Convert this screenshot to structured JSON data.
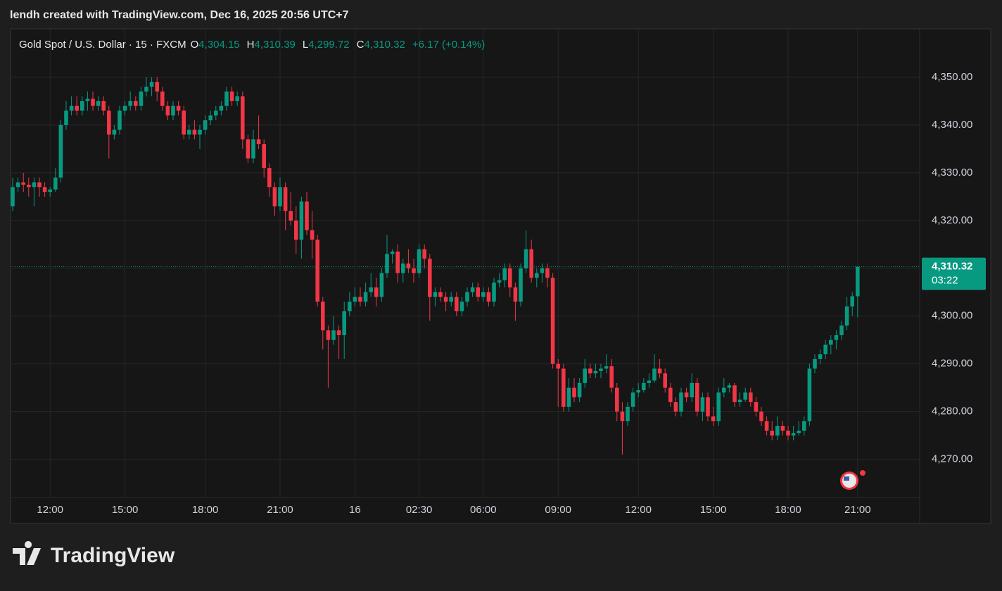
{
  "credit": "lendh created with TradingView.com, Dec 16, 2025 20:56 UTC+7",
  "brand": "TradingView",
  "legend": {
    "symbol": "Gold Spot / U.S. Dollar · 15 · FXCM",
    "items": [
      {
        "key": "O",
        "value": "4,304.15"
      },
      {
        "key": "H",
        "value": "4,310.39"
      },
      {
        "key": "L",
        "value": "4,299.72"
      },
      {
        "key": "C",
        "value": "4,310.32"
      }
    ],
    "change": "+6.17 (+0.14%)"
  },
  "chart_data": {
    "type": "candlestick",
    "up_color": "#089981",
    "down_color": "#f23645",
    "ylim": [
      4262,
      4360
    ],
    "yticks": [
      {
        "value": 4270,
        "label": "4,270.00"
      },
      {
        "value": 4280,
        "label": "4,280.00"
      },
      {
        "value": 4290,
        "label": "4,290.00"
      },
      {
        "value": 4300,
        "label": "4,300.00"
      },
      {
        "value": 4310,
        "label": "4,310.00"
      },
      {
        "value": 4320,
        "label": "4,320.00"
      },
      {
        "value": 4330,
        "label": "4,330.00"
      },
      {
        "value": 4340,
        "label": "4,340.00"
      },
      {
        "value": 4350,
        "label": "4,350.00"
      }
    ],
    "grid": true,
    "last_price": {
      "value": 4310.32,
      "label": "4,310.32",
      "countdown": "03:22"
    },
    "categories": [
      null,
      null,
      null,
      null,
      null,
      null,
      null,
      "12:00",
      null,
      null,
      null,
      null,
      null,
      null,
      null,
      null,
      null,
      null,
      null,
      null,
      null,
      "15:00",
      null,
      null,
      null,
      null,
      null,
      null,
      null,
      null,
      null,
      null,
      null,
      null,
      null,
      null,
      "18:00",
      null,
      null,
      null,
      null,
      null,
      null,
      null,
      null,
      null,
      null,
      null,
      null,
      null,
      "21:00",
      null,
      null,
      null,
      null,
      null,
      null,
      null,
      null,
      null,
      null,
      null,
      null,
      null,
      "16",
      null,
      null,
      null,
      null,
      null,
      null,
      null,
      null,
      null,
      null,
      null,
      "02:30",
      null,
      null,
      null,
      null,
      null,
      null,
      null,
      null,
      null,
      null,
      null,
      "06:00",
      null,
      null,
      null,
      null,
      null,
      null,
      null,
      null,
      null,
      null,
      null,
      null,
      null,
      "09:00",
      null,
      null,
      null,
      null,
      null,
      null,
      null,
      null,
      null,
      null,
      null,
      null,
      null,
      null,
      "12:00",
      null,
      null,
      null,
      null,
      null,
      null,
      null,
      null,
      null,
      null,
      null,
      null,
      null,
      "15:00",
      null,
      null,
      null,
      null,
      null,
      null,
      null,
      null,
      null,
      null,
      null,
      null,
      null,
      "18:00",
      null,
      null,
      null,
      null,
      null,
      null,
      null,
      null,
      null,
      null,
      null,
      null,
      "21:00"
    ],
    "ohlc": [
      [
        4323,
        4329,
        4322,
        4327
      ],
      [
        4327,
        4329,
        4326,
        4328
      ],
      [
        4328,
        4330,
        4326,
        4327.5
      ],
      [
        4327.5,
        4329,
        4325,
        4327
      ],
      [
        4327,
        4329,
        4323,
        4328
      ],
      [
        4328,
        4329,
        4325,
        4327
      ],
      [
        4327,
        4328,
        4325,
        4326
      ],
      [
        4326,
        4327,
        4325,
        4326.5
      ],
      [
        4326.5,
        4331,
        4326,
        4329
      ],
      [
        4329,
        4341,
        4328,
        4340
      ],
      [
        4340,
        4345,
        4339,
        4343
      ],
      [
        4343,
        4346,
        4342,
        4344
      ],
      [
        4344,
        4346,
        4342,
        4343
      ],
      [
        4343,
        4346,
        4342,
        4345
      ],
      [
        4345,
        4347,
        4343,
        4345.5
      ],
      [
        4345.5,
        4347,
        4343,
        4344
      ],
      [
        4344,
        4346,
        4343,
        4345
      ],
      [
        4345,
        4346,
        4342,
        4343
      ],
      [
        4343,
        4344,
        4333,
        4338
      ],
      [
        4338,
        4340,
        4337,
        4339
      ],
      [
        4339,
        4344,
        4338,
        4343
      ],
      [
        4343,
        4345,
        4342,
        4344
      ],
      [
        4344,
        4347,
        4343,
        4345
      ],
      [
        4345,
        4346,
        4343,
        4344
      ],
      [
        4344,
        4348,
        4343,
        4347
      ],
      [
        4347,
        4350,
        4346,
        4348
      ],
      [
        4348,
        4350,
        4346,
        4349
      ],
      [
        4349,
        4350,
        4345,
        4347
      ],
      [
        4347,
        4348,
        4343,
        4344
      ],
      [
        4344,
        4345,
        4341,
        4342
      ],
      [
        4342,
        4345,
        4341,
        4344
      ],
      [
        4344,
        4345,
        4342,
        4343
      ],
      [
        4343,
        4344,
        4337,
        4338
      ],
      [
        4338,
        4340,
        4337,
        4339
      ],
      [
        4339,
        4341,
        4337,
        4338
      ],
      [
        4338,
        4340,
        4335,
        4339
      ],
      [
        4339,
        4342,
        4338,
        4341
      ],
      [
        4341,
        4343,
        4340,
        4342
      ],
      [
        4342,
        4344,
        4341,
        4343
      ],
      [
        4343,
        4345,
        4342,
        4344
      ],
      [
        4344,
        4348,
        4343,
        4347
      ],
      [
        4347,
        4348,
        4344,
        4345
      ],
      [
        4345,
        4347,
        4344,
        4346
      ],
      [
        4346,
        4347,
        4335,
        4337
      ],
      [
        4337,
        4338,
        4332,
        4333
      ],
      [
        4333,
        4339,
        4332,
        4337
      ],
      [
        4337,
        4342,
        4335,
        4336
      ],
      [
        4336,
        4337,
        4329,
        4331
      ],
      [
        4331,
        4332,
        4325,
        4327
      ],
      [
        4327,
        4328,
        4321,
        4323
      ],
      [
        4323,
        4329,
        4322,
        4327
      ],
      [
        4327,
        4328,
        4318,
        4322
      ],
      [
        4322,
        4326,
        4319,
        4320
      ],
      [
        4320,
        4323,
        4313,
        4316
      ],
      [
        4316,
        4325,
        4312,
        4324
      ],
      [
        4324,
        4326,
        4317,
        4318
      ],
      [
        4318,
        4322,
        4312,
        4316
      ],
      [
        4316,
        4317,
        4302,
        4303
      ],
      [
        4303,
        4304,
        4293,
        4297
      ],
      [
        4297,
        4298,
        4285,
        4295
      ],
      [
        4295,
        4300,
        4294,
        4297
      ],
      [
        4297,
        4298,
        4291,
        4296
      ],
      [
        4296,
        4303,
        4291,
        4301
      ],
      [
        4301,
        4305,
        4300,
        4303
      ],
      [
        4303,
        4306,
        4302,
        4304
      ],
      [
        4304,
        4306,
        4302,
        4303
      ],
      [
        4303,
        4307,
        4302,
        4305
      ],
      [
        4305,
        4309,
        4304,
        4306
      ],
      [
        4306,
        4308,
        4302,
        4304
      ],
      [
        4304,
        4310,
        4303,
        4309
      ],
      [
        4309,
        4317,
        4308,
        4313
      ],
      [
        4313,
        4314,
        4311,
        4313.5
      ],
      [
        4313.5,
        4315,
        4307,
        4309
      ],
      [
        4309,
        4312,
        4307,
        4311
      ],
      [
        4311,
        4314,
        4309,
        4310
      ],
      [
        4310,
        4312,
        4307,
        4309
      ],
      [
        4309,
        4315,
        4308,
        4314
      ],
      [
        4314,
        4315,
        4310,
        4312
      ],
      [
        4312,
        4313,
        4299,
        4304
      ],
      [
        4304,
        4306,
        4302,
        4305
      ],
      [
        4305,
        4306,
        4303,
        4304
      ],
      [
        4304,
        4305,
        4301,
        4303
      ],
      [
        4303,
        4305,
        4302,
        4304
      ],
      [
        4304,
        4305,
        4300,
        4301
      ],
      [
        4301,
        4304,
        4300,
        4303
      ],
      [
        4303,
        4306,
        4302,
        4305
      ],
      [
        4305,
        4307,
        4304,
        4306
      ],
      [
        4306,
        4307,
        4303,
        4304
      ],
      [
        4304,
        4306,
        4303,
        4305
      ],
      [
        4305,
        4306,
        4302,
        4303
      ],
      [
        4303,
        4308,
        4302,
        4307
      ],
      [
        4307,
        4309,
        4306,
        4307.5
      ],
      [
        4307.5,
        4311,
        4306,
        4310
      ],
      [
        4310,
        4311,
        4304,
        4306
      ],
      [
        4306,
        4307,
        4299,
        4303
      ],
      [
        4303,
        4311,
        4302,
        4310
      ],
      [
        4310,
        4318,
        4309,
        4314
      ],
      [
        4314,
        4316,
        4307,
        4308
      ],
      [
        4308,
        4310,
        4306,
        4309
      ],
      [
        4309,
        4311,
        4307,
        4310
      ],
      [
        4310,
        4311,
        4306,
        4308
      ],
      [
        4308,
        4309,
        4289,
        4290
      ],
      [
        4290,
        4291,
        4281,
        4289
      ],
      [
        4289,
        4290,
        4280,
        4281
      ],
      [
        4281,
        4287,
        4280,
        4285
      ],
      [
        4285,
        4287,
        4282,
        4283
      ],
      [
        4283,
        4287,
        4282,
        4286
      ],
      [
        4286,
        4291,
        4285,
        4289
      ],
      [
        4289,
        4290,
        4287,
        4288
      ],
      [
        4288,
        4290,
        4287,
        4288.5
      ],
      [
        4288.5,
        4290,
        4287,
        4289
      ],
      [
        4289,
        4292,
        4288,
        4289.5
      ],
      [
        4289.5,
        4291,
        4284,
        4285
      ],
      [
        4285,
        4286,
        4278,
        4280
      ],
      [
        4280,
        4282,
        4271,
        4278
      ],
      [
        4278,
        4282,
        4277,
        4281
      ],
      [
        4281,
        4285,
        4280,
        4284
      ],
      [
        4284,
        4286,
        4283,
        4284.5
      ],
      [
        4284.5,
        4287,
        4284,
        4286
      ],
      [
        4286,
        4288,
        4285,
        4286.5
      ],
      [
        4286.5,
        4292,
        4286,
        4289
      ],
      [
        4289,
        4291,
        4287,
        4288
      ],
      [
        4288,
        4289,
        4284,
        4285
      ],
      [
        4285,
        4286,
        4281,
        4282
      ],
      [
        4282,
        4283,
        4279,
        4280
      ],
      [
        4280,
        4285,
        4279,
        4284
      ],
      [
        4284,
        4285,
        4282,
        4283
      ],
      [
        4283,
        4288,
        4282,
        4286
      ],
      [
        4286,
        4287,
        4279,
        4280
      ],
      [
        4280,
        4284,
        4278,
        4283
      ],
      [
        4283,
        4284,
        4278,
        4279
      ],
      [
        4279,
        4281,
        4277,
        4278
      ],
      [
        4278,
        4285,
        4277,
        4284
      ],
      [
        4284,
        4287,
        4283,
        4285
      ],
      [
        4285,
        4286,
        4284,
        4285.5
      ],
      [
        4285.5,
        4286,
        4281,
        4282
      ],
      [
        4282,
        4284,
        4281,
        4282.5
      ],
      [
        4282.5,
        4285,
        4282,
        4284
      ],
      [
        4284,
        4285,
        4281,
        4282
      ],
      [
        4282,
        4283,
        4279,
        4280
      ],
      [
        4280,
        4281,
        4277,
        4278
      ],
      [
        4278,
        4279,
        4275,
        4276
      ],
      [
        4276,
        4278,
        4274,
        4275
      ],
      [
        4275,
        4279,
        4274,
        4277
      ],
      [
        4277,
        4278,
        4275,
        4276
      ],
      [
        4276,
        4277,
        4274,
        4275
      ],
      [
        4275,
        4277,
        4274,
        4275.5
      ],
      [
        4275.5,
        4278,
        4275,
        4276
      ],
      [
        4276,
        4279,
        4275,
        4278
      ],
      [
        4278,
        4290,
        4277,
        4289
      ],
      [
        4289,
        4292,
        4288,
        4291
      ],
      [
        4291,
        4293,
        4290,
        4292
      ],
      [
        4292,
        4295,
        4291,
        4294
      ],
      [
        4294,
        4296,
        4292,
        4295
      ],
      [
        4295,
        4297,
        4293,
        4296
      ],
      [
        4296,
        4299,
        4295,
        4298
      ],
      [
        4298,
        4304,
        4297,
        4302
      ],
      [
        4302,
        4305,
        4300,
        4304.15
      ],
      [
        4304.15,
        4310.39,
        4299.72,
        4310.32
      ]
    ]
  }
}
